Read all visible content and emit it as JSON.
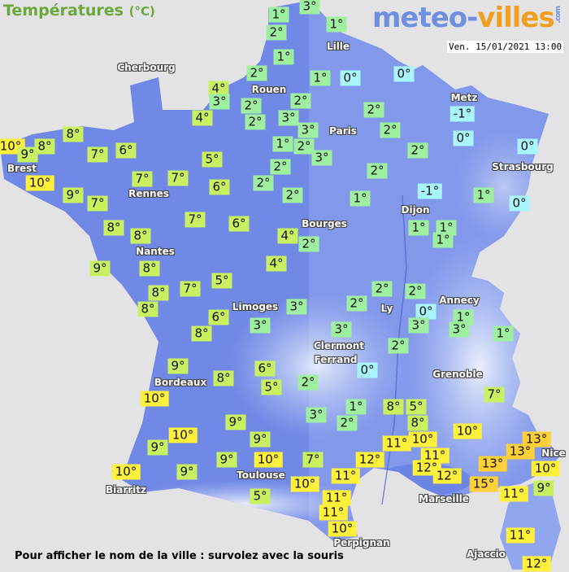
{
  "header": {
    "title": "Températures",
    "unit": "(°C)",
    "logo": {
      "main": "meteo-",
      "accent": "villes",
      "suffix": ".com"
    },
    "datetime": "Ven. 15/01/2021 13:00"
  },
  "footer": "Pour afficher le nom de la ville : survolez avec la souris",
  "colors": {
    "cold": "#a8f6fb",
    "cool": "#9ef0a0",
    "mild": "#c8f060",
    "warm": "#fff03c",
    "hot": "#ffcf3a",
    "land": "#7088e6",
    "sea": "#e3e3e5"
  },
  "cities": [
    "Lille",
    "Cherbourg",
    "Rouen",
    "Metz",
    "Paris",
    "Brest",
    "Strasbourg",
    "Rennes",
    "Dijon",
    "Bourges",
    "Nantes",
    "Limoges",
    "Annecy",
    "Ly",
    "Clermont",
    "Ferrand",
    "Grenoble",
    "Bordeaux",
    "Nice",
    "Toulouse",
    "Marseille",
    "Biarritz",
    "Perpignan",
    "Ajaccio"
  ],
  "temperatures": [
    1,
    3,
    1,
    2,
    1,
    2,
    1,
    0,
    0,
    4,
    3,
    2,
    2,
    4,
    2,
    3,
    2,
    3,
    2,
    -1,
    0,
    10,
    8,
    8,
    9,
    7,
    6,
    1,
    2,
    3,
    2,
    0,
    5,
    10,
    7,
    7,
    6,
    2,
    2,
    2,
    2,
    -1,
    1,
    0,
    9,
    7,
    1,
    7,
    6,
    8,
    8,
    4,
    2,
    1,
    1,
    1,
    9,
    8,
    4,
    5,
    7,
    8,
    8,
    2,
    2,
    3,
    0,
    1,
    3,
    3,
    1,
    2,
    6,
    8,
    3,
    3,
    2,
    0,
    9,
    6,
    8,
    5,
    2,
    7,
    10,
    1,
    8,
    5,
    3,
    2,
    8,
    9,
    10,
    10,
    9,
    11,
    10,
    13,
    9,
    13,
    9,
    10,
    7,
    12,
    11,
    12,
    13,
    10,
    10,
    9,
    11,
    12,
    15,
    9,
    10,
    5,
    11,
    11,
    11,
    10,
    11,
    12
  ]
}
